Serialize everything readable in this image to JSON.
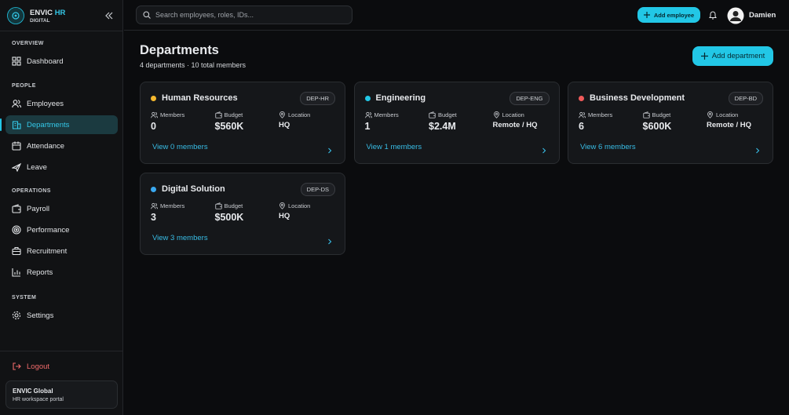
{
  "brand": {
    "name": "ENVIC",
    "accent": "HR",
    "sub": "DIGITAL"
  },
  "nav": [
    {
      "section": "OVERVIEW",
      "items": [
        {
          "label": "Dashboard",
          "icon": "grid"
        }
      ]
    },
    {
      "section": "PEOPLE",
      "items": [
        {
          "label": "Employees",
          "icon": "users"
        },
        {
          "label": "Departments",
          "icon": "building",
          "active": true
        },
        {
          "label": "Attendance",
          "icon": "calendar"
        },
        {
          "label": "Leave",
          "icon": "plane"
        }
      ]
    },
    {
      "section": "OPERATIONS",
      "items": [
        {
          "label": "Payroll",
          "icon": "wallet"
        },
        {
          "label": "Performance",
          "icon": "target"
        },
        {
          "label": "Recruitment",
          "icon": "briefcase"
        },
        {
          "label": "Reports",
          "icon": "chart"
        }
      ]
    },
    {
      "section": "SYSTEM",
      "items": [
        {
          "label": "Settings",
          "icon": "gear"
        }
      ]
    }
  ],
  "logout": "Logout",
  "footer": {
    "title": "ENVIC Global",
    "subtitle": "HR workspace portal"
  },
  "topbar": {
    "search_placeholder": "Search employees, roles, IDs...",
    "add_button": "Add employee",
    "user": "Damien"
  },
  "page": {
    "title": "Departments",
    "subtitle": "4 departments · 10 total members",
    "add_button": "Add department"
  },
  "field_labels": {
    "members": "Members",
    "budget": "Budget",
    "location": "Location"
  },
  "departments": [
    {
      "name": "Human Resources",
      "code": "DEP-HR",
      "color": "#f5b82e",
      "members": "0",
      "budget": "$560K",
      "location": "HQ",
      "link": "View 0 members"
    },
    {
      "name": "Engineering",
      "code": "DEP-ENG",
      "color": "#22c7e6",
      "members": "1",
      "budget": "$2.4M",
      "location": "Remote / HQ",
      "link": "View 1 members"
    },
    {
      "name": "Business Development",
      "code": "DEP-BD",
      "color": "#f05a5a",
      "members": "6",
      "budget": "$600K",
      "location": "Remote / HQ",
      "link": "View 6 members"
    },
    {
      "name": "Digital Solution",
      "code": "DEP-DS",
      "color": "#3aa8f0",
      "members": "3",
      "budget": "$500K",
      "location": "HQ",
      "link": "View 3 members"
    }
  ]
}
